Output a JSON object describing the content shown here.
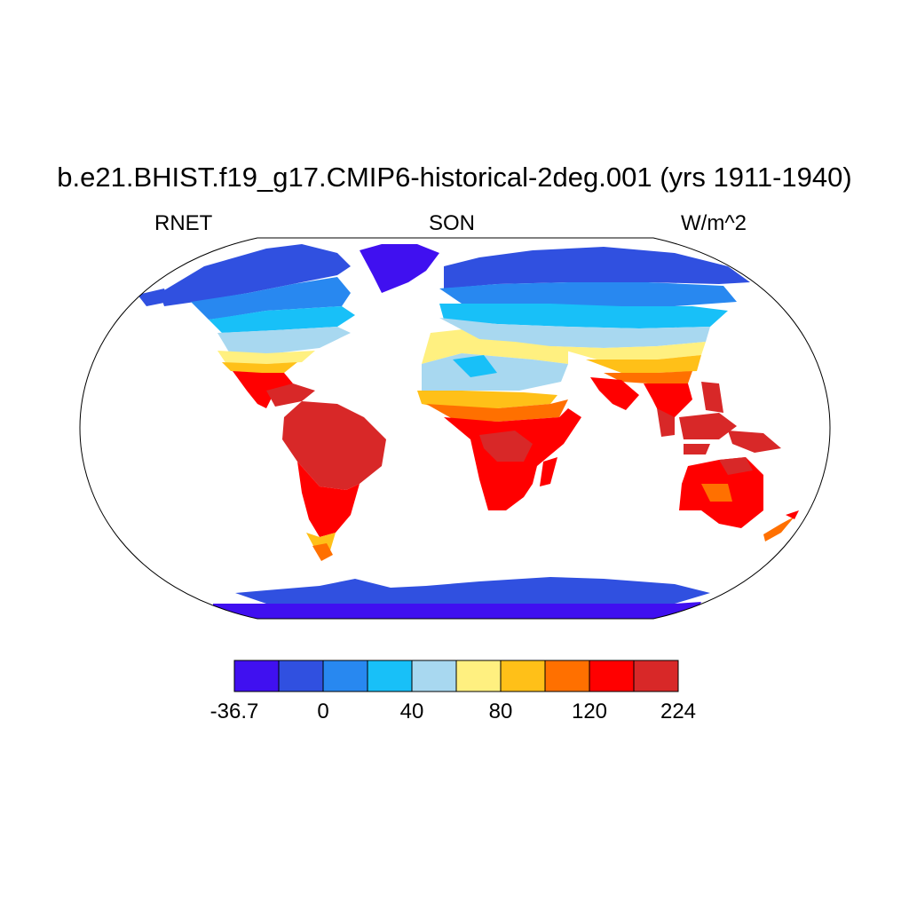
{
  "title": "b.e21.BHIST.f19_g17.CMIP6-historical-2deg.001 (yrs 1911-1940)",
  "subtitle_left": "RNET",
  "subtitle_center": "SON",
  "subtitle_right": "W/m^2",
  "colorbar": {
    "colors": [
      "#4010f0",
      "#3050e0",
      "#2888f0",
      "#18c0f8",
      "#a8d8f0",
      "#fff080",
      "#ffc018",
      "#ff7000",
      "#ff0000",
      "#d82828"
    ],
    "tick_labels": [
      "-36.7",
      "0",
      "40",
      "80",
      "120",
      "224"
    ]
  },
  "map": {
    "projection": "Robinson",
    "ocean": "masked (white)"
  }
}
